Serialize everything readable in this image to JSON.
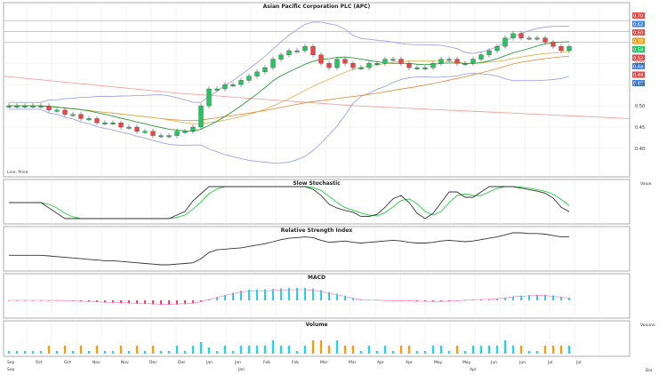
{
  "app": {
    "title": "Asian Pacific Corporation PLC (APC)",
    "subtitle": "Line: Price",
    "menu_label": "Bar"
  },
  "panels": {
    "price": {
      "label": "Asian Pacific Corporation PLC (APC)"
    },
    "stoch": {
      "label": "Slow Stochastic",
      "right_label": "Value"
    },
    "rsi": {
      "label": "Relative Strength Index"
    },
    "macd": {
      "label": "MACD"
    },
    "volume": {
      "label": "Volume",
      "right_label": "Volume"
    }
  },
  "x_labels": [
    "Sep",
    "Oct",
    "Oct",
    "Nov",
    "Nov",
    "Dec",
    "Dec",
    "Jan",
    "Jan",
    "Feb",
    "Feb",
    "Mar",
    "Mar",
    "Apr",
    "Apr",
    "May",
    "May",
    "Jun",
    "Jun",
    "Jul",
    "Jul"
  ],
  "x_labels_bottom": [
    "Sep",
    "Jan",
    "Apr"
  ],
  "colors": {
    "up": "#22c55e",
    "down": "#ef4444",
    "bb": "#9da3e8",
    "ma1": "#2e9c3e",
    "ma2": "#e08b3a",
    "ma3": "#d9b24a",
    "stoch_k": "#333333",
    "stoch_d": "#22cc44",
    "rsi": "#333333",
    "macd_pos": "#22d3ee",
    "macd_neg": "#f43f5e",
    "vol_up": "#22d3ee",
    "vol_dn": "#f59e0b",
    "hline": "#f7b3b3"
  },
  "right_badges": [
    {
      "text": "0.70",
      "color": "#ef4444"
    },
    {
      "text": "0.62",
      "color": "#3b82f6"
    },
    {
      "text": "0.60",
      "color": "#ef4444"
    },
    {
      "text": "0.58",
      "color": "#f59e0b"
    },
    {
      "text": "0.54",
      "color": "#22c55e"
    },
    {
      "text": "0.52",
      "color": "#ef4444"
    },
    {
      "text": "0.48",
      "color": "#3b82f6"
    },
    {
      "text": "0.44",
      "color": "#ef4444"
    },
    {
      "text": "0.40",
      "color": "#3b82f6"
    }
  ],
  "chart_data": {
    "type": "line",
    "price_ticks": [
      "0.60",
      "0.55",
      "0.50",
      "0.45",
      "0.40"
    ],
    "ylim": [
      0.36,
      0.72
    ],
    "close": [
      0.5,
      0.5,
      0.5,
      0.5,
      0.5,
      0.49,
      0.49,
      0.48,
      0.48,
      0.47,
      0.47,
      0.46,
      0.46,
      0.46,
      0.45,
      0.45,
      0.44,
      0.44,
      0.43,
      0.43,
      0.43,
      0.44,
      0.44,
      0.45,
      0.5,
      0.54,
      0.54,
      0.55,
      0.55,
      0.56,
      0.57,
      0.58,
      0.59,
      0.61,
      0.62,
      0.63,
      0.63,
      0.64,
      0.62,
      0.6,
      0.59,
      0.61,
      0.6,
      0.59,
      0.59,
      0.6,
      0.6,
      0.61,
      0.61,
      0.6,
      0.59,
      0.59,
      0.59,
      0.6,
      0.61,
      0.61,
      0.6,
      0.6,
      0.61,
      0.62,
      0.63,
      0.64,
      0.66,
      0.67,
      0.66,
      0.66,
      0.66,
      0.65,
      0.64,
      0.63,
      0.64
    ]
  }
}
